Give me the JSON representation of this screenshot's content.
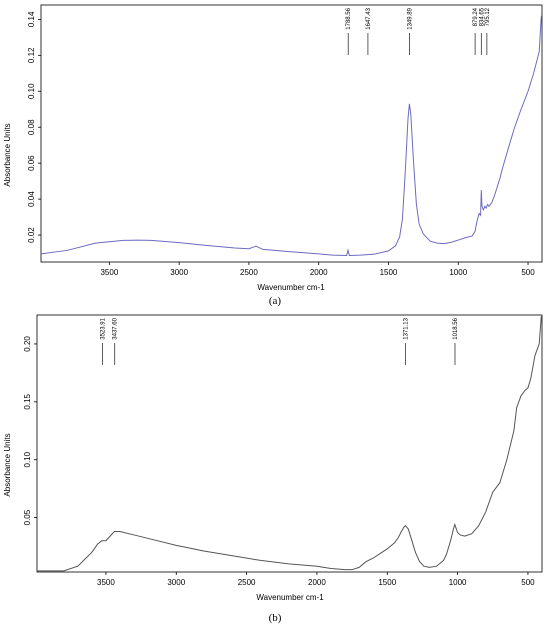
{
  "chart_data": [
    {
      "type": "line",
      "panel_label": "(a)",
      "xlabel": "Wavenumber cm-1",
      "ylabel": "Absorbance Units",
      "xlim": [
        3990,
        400
      ],
      "ylim": [
        0.005,
        0.148
      ],
      "x_ticks": [
        3500,
        3000,
        2500,
        2000,
        1500,
        1000,
        500
      ],
      "y_ticks": [
        0.02,
        0.04,
        0.06,
        0.08,
        0.1,
        0.12,
        0.14
      ],
      "y_tick_labels": [
        "0.02",
        "0.04",
        "0.06",
        "0.08",
        "0.10",
        "0.12",
        "0.14"
      ],
      "line_color": "#6b6bbf",
      "peaks": [
        {
          "x": 1788.56,
          "label": "1788.56"
        },
        {
          "x": 1647.43,
          "label": "1647.43"
        },
        {
          "x": 1349.89,
          "label": "1349.89"
        },
        {
          "x": 879.24,
          "label": "879.24"
        },
        {
          "x": 834.65,
          "label": "834.65"
        },
        {
          "x": 795.12,
          "label": "795.12"
        }
      ],
      "series": [
        {
          "x": [
            3990,
            3800,
            3600,
            3400,
            3300,
            3200,
            3000,
            2800,
            2600,
            2500,
            2450,
            2400,
            2200,
            2000,
            1900,
            1800,
            1790,
            1780,
            1700,
            1600,
            1500,
            1450,
            1420,
            1400,
            1380,
            1360,
            1350,
            1340,
            1320,
            1300,
            1280,
            1250,
            1200,
            1150,
            1100,
            1050,
            1000,
            950,
            900,
            880,
            870,
            860,
            850,
            840,
            835,
            830,
            820,
            810,
            800,
            790,
            780,
            760,
            740,
            720,
            700,
            680,
            650,
            600,
            550,
            500,
            460,
            420,
            405
          ],
          "y": [
            0.0095,
            0.0115,
            0.0155,
            0.017,
            0.0172,
            0.017,
            0.0158,
            0.0142,
            0.0128,
            0.0124,
            0.0138,
            0.012,
            0.0107,
            0.0095,
            0.0088,
            0.0086,
            0.0115,
            0.0086,
            0.0088,
            0.0094,
            0.0112,
            0.014,
            0.019,
            0.029,
            0.055,
            0.085,
            0.093,
            0.087,
            0.06,
            0.037,
            0.026,
            0.0205,
            0.0165,
            0.0155,
            0.0152,
            0.016,
            0.0172,
            0.0185,
            0.0195,
            0.022,
            0.026,
            0.0295,
            0.032,
            0.031,
            0.045,
            0.036,
            0.034,
            0.036,
            0.035,
            0.037,
            0.036,
            0.038,
            0.042,
            0.047,
            0.052,
            0.058,
            0.066,
            0.079,
            0.09,
            0.1,
            0.11,
            0.122,
            0.142
          ]
        }
      ]
    },
    {
      "type": "line",
      "panel_label": "(b)",
      "xlabel": "Wavenumber cm-1",
      "ylabel": "Absorbance Units",
      "xlim": [
        3990,
        400
      ],
      "ylim": [
        0.003,
        0.225
      ],
      "x_ticks": [
        3500,
        3000,
        2500,
        2000,
        1500,
        1000,
        500
      ],
      "y_ticks": [
        0.05,
        0.1,
        0.15,
        0.2
      ],
      "y_tick_labels": [
        "0.05",
        "0.10",
        "0.15",
        "0.20"
      ],
      "line_color": "#555555",
      "peaks": [
        {
          "x": 3523.91,
          "label": "3523.91"
        },
        {
          "x": 3437.6,
          "label": "3437.60"
        },
        {
          "x": 1371.13,
          "label": "1371.13"
        },
        {
          "x": 1018.56,
          "label": "1018.56"
        }
      ],
      "series": [
        {
          "x": [
            3990,
            3800,
            3700,
            3650,
            3600,
            3560,
            3530,
            3500,
            3470,
            3440,
            3400,
            3300,
            3200,
            3000,
            2800,
            2600,
            2400,
            2200,
            2000,
            1900,
            1800,
            1750,
            1700,
            1650,
            1600,
            1550,
            1500,
            1450,
            1420,
            1400,
            1380,
            1370,
            1350,
            1330,
            1300,
            1270,
            1240,
            1200,
            1150,
            1100,
            1080,
            1050,
            1030,
            1020,
            1000,
            980,
            950,
            900,
            850,
            800,
            750,
            700,
            650,
            600,
            580,
            550,
            520,
            500,
            480,
            450,
            420,
            405
          ],
          "y": [
            0.004,
            0.004,
            0.008,
            0.014,
            0.02,
            0.027,
            0.03,
            0.03,
            0.034,
            0.038,
            0.038,
            0.035,
            0.032,
            0.026,
            0.021,
            0.017,
            0.013,
            0.01,
            0.008,
            0.006,
            0.005,
            0.005,
            0.007,
            0.012,
            0.015,
            0.019,
            0.023,
            0.028,
            0.033,
            0.038,
            0.042,
            0.043,
            0.04,
            0.032,
            0.02,
            0.012,
            0.008,
            0.007,
            0.008,
            0.013,
            0.018,
            0.03,
            0.04,
            0.044,
            0.037,
            0.035,
            0.034,
            0.036,
            0.043,
            0.055,
            0.072,
            0.08,
            0.1,
            0.125,
            0.145,
            0.155,
            0.16,
            0.162,
            0.17,
            0.19,
            0.2,
            0.224
          ]
        }
      ]
    }
  ]
}
